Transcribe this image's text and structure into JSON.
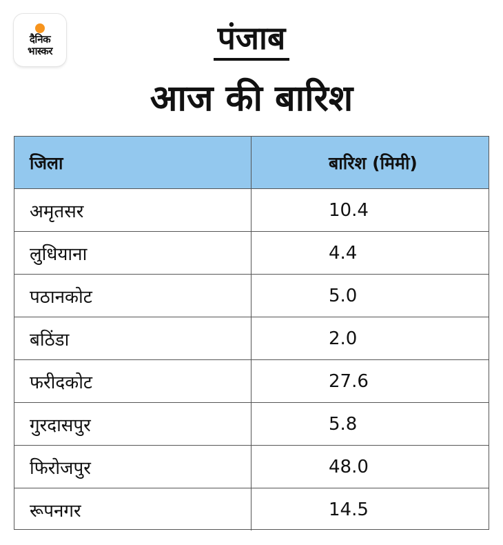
{
  "logo": {
    "line1": "दैनिक",
    "line2": "भास्कर"
  },
  "state_title": "पंजाब",
  "main_title": "आज की बारिश",
  "table": {
    "headers": [
      "जिला",
      "बारिश (मिमी)"
    ],
    "rows": [
      [
        "अमृतसर",
        "10.4"
      ],
      [
        "लुधियाना",
        "4.4"
      ],
      [
        "पठानकोट",
        "5.0"
      ],
      [
        "बठिंडा",
        "2.0"
      ],
      [
        "फरीदकोट",
        "27.6"
      ],
      [
        "गुरदासपुर",
        "5.8"
      ],
      [
        "फिरोजपुर",
        "48.0"
      ],
      [
        "रूपनगर",
        "14.5"
      ]
    ]
  },
  "colors": {
    "header_bg": "#93c8ee",
    "logo_sun": "#f7941d",
    "border": "#555555"
  }
}
